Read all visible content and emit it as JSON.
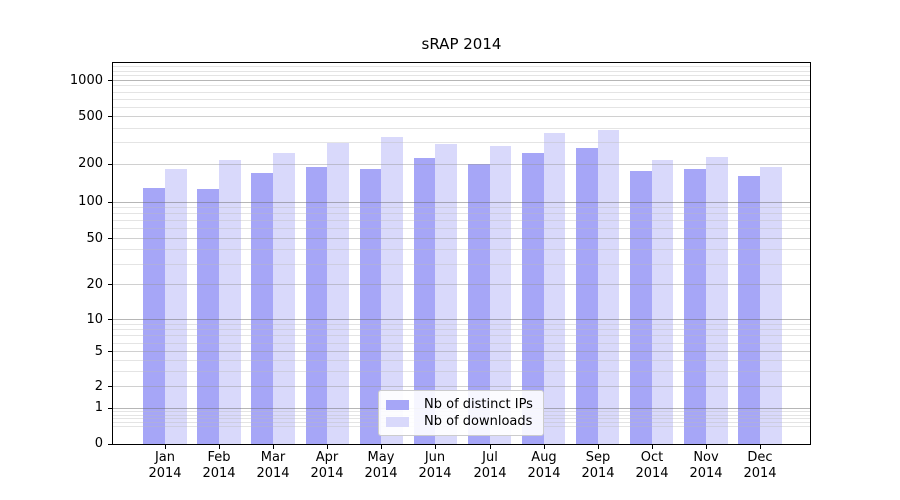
{
  "title": "sRAP 2014",
  "chart_data": {
    "type": "bar",
    "title": "sRAP 2014",
    "categories": [
      "Jan",
      "Feb",
      "Mar",
      "Apr",
      "May",
      "Jun",
      "Jul",
      "Aug",
      "Sep",
      "Oct",
      "Nov",
      "Dec"
    ],
    "category_year": "2014",
    "series": [
      {
        "name": "Nb of distinct IPs",
        "color": "#a6a6f7",
        "values": [
          128,
          125,
          167,
          187,
          180,
          222,
          199,
          246,
          268,
          175,
          180,
          159
        ]
      },
      {
        "name": "Nb of downloads",
        "color": "#d9d9fb",
        "values": [
          180,
          213,
          246,
          298,
          331,
          290,
          280,
          357,
          380,
          214,
          227,
          189
        ]
      }
    ],
    "xlabel": "",
    "ylabel": "",
    "yscale": "log (symlog: linear segment below 1, 0 at axis bottom)",
    "y_ticks": [
      0,
      1,
      2,
      5,
      10,
      20,
      50,
      100,
      200,
      500,
      1000
    ],
    "ylim": [
      0,
      1390
    ],
    "grid": true,
    "legend_position": "lower center"
  },
  "colors": {
    "axis": "#000000",
    "grid_major": "#b9b9b9",
    "grid_mid": "#d2d2d2",
    "grid_minor": "#e2e2e2",
    "background": "#ffffff"
  }
}
